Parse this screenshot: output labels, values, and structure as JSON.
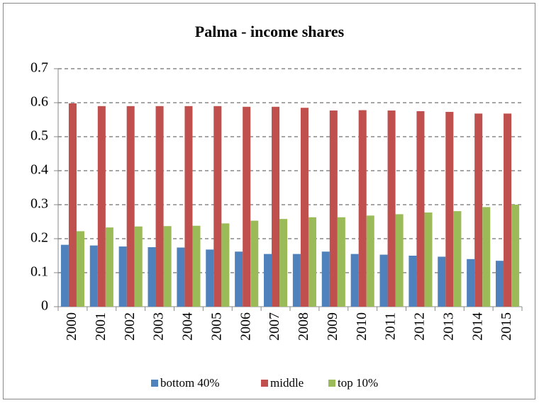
{
  "chart_data": {
    "type": "bar",
    "title": "Palma - income shares",
    "categories": [
      "2000",
      "2001",
      "2002",
      "2003",
      "2004",
      "2005",
      "2006",
      "2007",
      "2008",
      "2009",
      "2010",
      "2011",
      "2012",
      "2013",
      "2014",
      "2015"
    ],
    "series": [
      {
        "name": "bottom 40%",
        "color": "#4f81bd",
        "values": [
          0.182,
          0.18,
          0.177,
          0.175,
          0.174,
          0.168,
          0.162,
          0.155,
          0.155,
          0.162,
          0.155,
          0.153,
          0.15,
          0.147,
          0.14,
          0.135
        ]
      },
      {
        "name": "middle",
        "color": "#c0504d",
        "values": [
          0.598,
          0.59,
          0.59,
          0.59,
          0.59,
          0.59,
          0.588,
          0.588,
          0.585,
          0.577,
          0.578,
          0.577,
          0.575,
          0.573,
          0.568,
          0.568
        ]
      },
      {
        "name": "top 10%",
        "color": "#9bbb59",
        "values": [
          0.222,
          0.233,
          0.236,
          0.237,
          0.238,
          0.245,
          0.253,
          0.258,
          0.263,
          0.263,
          0.268,
          0.272,
          0.277,
          0.281,
          0.293,
          0.3
        ]
      }
    ],
    "ylim": [
      0,
      0.7
    ],
    "yticks": [
      0,
      0.1,
      0.2,
      0.3,
      0.4,
      0.5,
      0.6,
      0.7
    ],
    "grid": true,
    "legend": "bottom"
  }
}
